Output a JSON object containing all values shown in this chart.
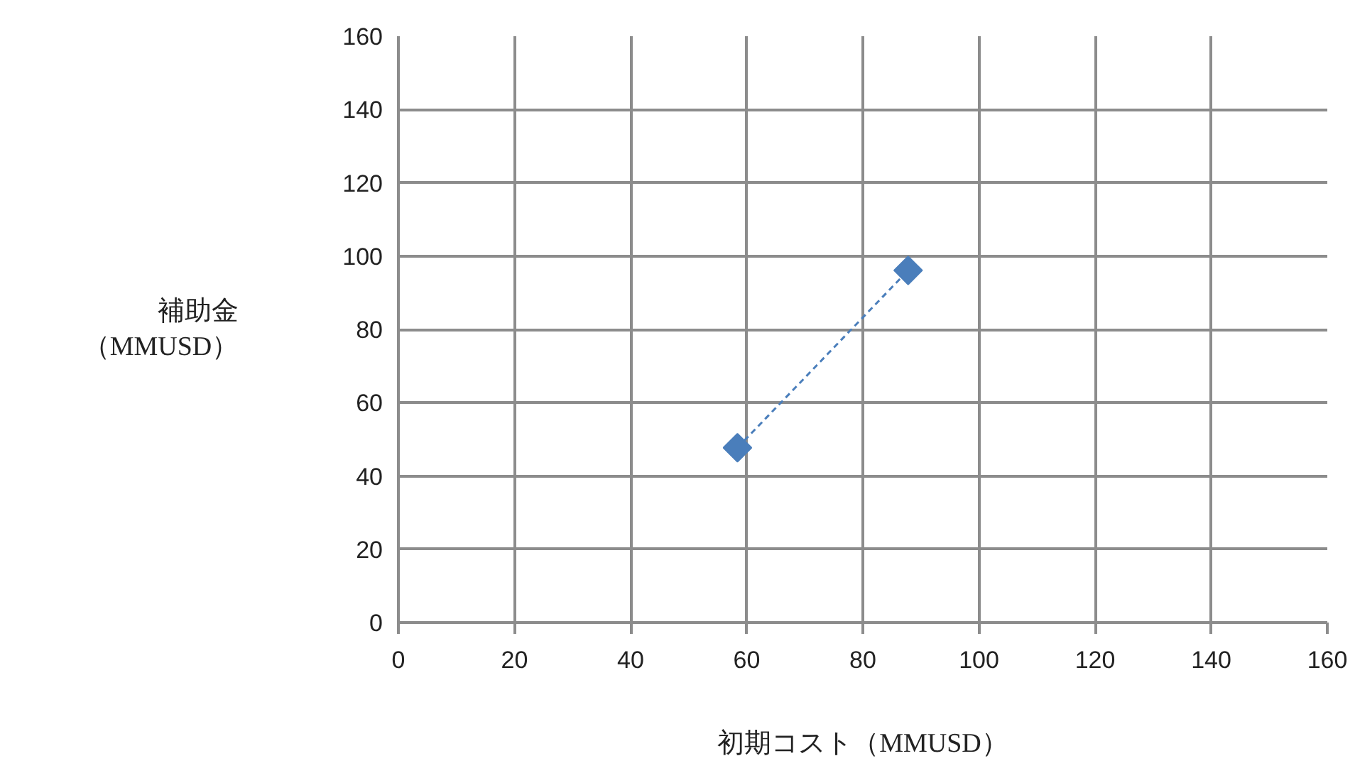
{
  "chart_data": {
    "type": "line",
    "xlabel": "初期コスト（MMUSD）",
    "ylabel": "補助金（MMUSD）",
    "x": [
      58.4,
      87.8
    ],
    "series": [
      {
        "color": "#4a7ebb",
        "values": [
          47.7,
          96.1
        ]
      }
    ],
    "marker": "diamond",
    "line_style": "dashed",
    "xlim": [
      0,
      160
    ],
    "xticks": [
      0,
      20,
      40,
      60,
      80,
      100,
      120,
      140,
      160
    ],
    "ylim": [
      0,
      160
    ],
    "yticks": [
      0,
      20,
      40,
      60,
      80,
      100,
      120,
      140,
      160
    ],
    "grid": true
  }
}
